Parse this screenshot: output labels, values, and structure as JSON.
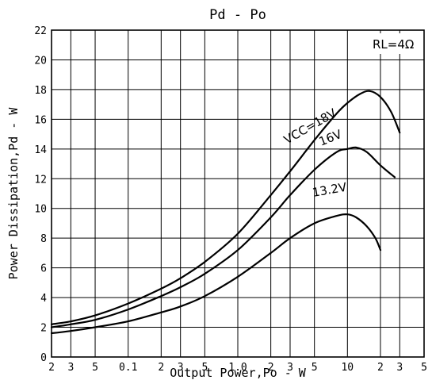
{
  "chart_data": {
    "type": "line",
    "title": "Pd - Po",
    "xlabel": "Output Power,Po - W",
    "ylabel": "Power Dissipation,Pd - W",
    "x_scale": "log",
    "xlim": [
      0.02,
      50
    ],
    "ylim": [
      0,
      22
    ],
    "grid": true,
    "x_tick_labels": [
      {
        "value": 0.02,
        "label": "2"
      },
      {
        "value": 0.03,
        "label": "3"
      },
      {
        "value": 0.05,
        "label": "5"
      },
      {
        "value": 0.1,
        "label": "0.1"
      },
      {
        "value": 0.2,
        "label": "2"
      },
      {
        "value": 0.3,
        "label": "3"
      },
      {
        "value": 0.5,
        "label": "5"
      },
      {
        "value": 1,
        "label": "1.0"
      },
      {
        "value": 2,
        "label": "2"
      },
      {
        "value": 3,
        "label": "3"
      },
      {
        "value": 5,
        "label": "5"
      },
      {
        "value": 10,
        "label": "10"
      },
      {
        "value": 20,
        "label": "2"
      },
      {
        "value": 30,
        "label": "3"
      },
      {
        "value": 50,
        "label": "5"
      }
    ],
    "y_ticks": [
      0,
      2,
      4,
      6,
      8,
      10,
      12,
      14,
      16,
      18,
      20,
      22
    ],
    "annotation": "RL=4Ω",
    "series": [
      {
        "name": "VCC=18V",
        "points": [
          [
            0.02,
            2.2
          ],
          [
            0.03,
            2.4
          ],
          [
            0.05,
            2.8
          ],
          [
            0.1,
            3.6
          ],
          [
            0.2,
            4.6
          ],
          [
            0.3,
            5.3
          ],
          [
            0.5,
            6.4
          ],
          [
            1,
            8.3
          ],
          [
            2,
            10.9
          ],
          [
            3,
            12.5
          ],
          [
            5,
            14.6
          ],
          [
            8,
            16.4
          ],
          [
            10,
            17.1
          ],
          [
            13,
            17.7
          ],
          [
            16,
            17.9
          ],
          [
            20,
            17.5
          ],
          [
            25,
            16.5
          ],
          [
            30,
            15.1
          ]
        ]
      },
      {
        "name": "16V",
        "points": [
          [
            0.02,
            2.0
          ],
          [
            0.03,
            2.2
          ],
          [
            0.05,
            2.5
          ],
          [
            0.1,
            3.2
          ],
          [
            0.2,
            4.1
          ],
          [
            0.3,
            4.7
          ],
          [
            0.5,
            5.6
          ],
          [
            1,
            7.2
          ],
          [
            2,
            9.4
          ],
          [
            3,
            10.9
          ],
          [
            5,
            12.6
          ],
          [
            8,
            13.8
          ],
          [
            10,
            14.0
          ],
          [
            12,
            14.1
          ],
          [
            15,
            13.8
          ],
          [
            20,
            12.9
          ],
          [
            27,
            12.1
          ]
        ]
      },
      {
        "name": "13.2V",
        "points": [
          [
            0.02,
            1.6
          ],
          [
            0.03,
            1.75
          ],
          [
            0.05,
            2.0
          ],
          [
            0.1,
            2.4
          ],
          [
            0.2,
            3.0
          ],
          [
            0.3,
            3.4
          ],
          [
            0.5,
            4.1
          ],
          [
            1,
            5.4
          ],
          [
            2,
            7.0
          ],
          [
            3,
            8.0
          ],
          [
            5,
            9.0
          ],
          [
            8,
            9.5
          ],
          [
            10,
            9.6
          ],
          [
            12,
            9.4
          ],
          [
            15,
            8.8
          ],
          [
            18,
            8.0
          ],
          [
            20,
            7.2
          ]
        ]
      }
    ],
    "series_labels": [
      "VCC=18V",
      "16V",
      "13.2V"
    ]
  }
}
